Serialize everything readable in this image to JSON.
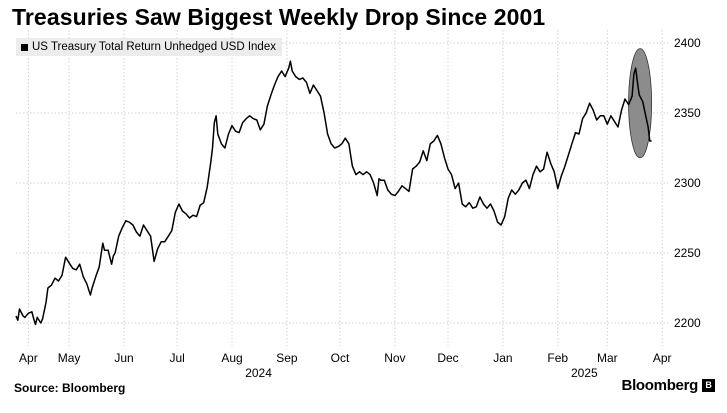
{
  "title": "Treasuries Saw Biggest Weekly Drop Since 2001",
  "source": "Source: Bloomberg",
  "brand": "Bloomberg",
  "chart_data": {
    "type": "line",
    "title": "Treasuries Saw Biggest Weekly Drop Since 2001",
    "legend": "US Treasury Total Return Unhedged USD Index",
    "legend_position": "top-left",
    "y_axis_side": "right",
    "ylim": [
      2190,
      2410
    ],
    "y_ticks": [
      2200,
      2250,
      2300,
      2350,
      2400
    ],
    "xlim": [
      0,
      366
    ],
    "x_ticks": [
      {
        "label": "Apr",
        "day": 7
      },
      {
        "label": "May",
        "day": 30
      },
      {
        "label": "Jun",
        "day": 61
      },
      {
        "label": "Jul",
        "day": 91
      },
      {
        "label": "Aug",
        "day": 122
      },
      {
        "label": "Sep",
        "day": 153
      },
      {
        "label": "Oct",
        "day": 183
      },
      {
        "label": "Nov",
        "day": 214
      },
      {
        "label": "Dec",
        "day": 244
      },
      {
        "label": "Jan",
        "day": 275
      },
      {
        "label": "Feb",
        "day": 306
      },
      {
        "label": "Mar",
        "day": 334
      },
      {
        "label": "Apr",
        "day": 365
      }
    ],
    "year_labels": [
      {
        "label": "2024",
        "day": 137
      },
      {
        "label": "2025",
        "day": 321
      }
    ],
    "grid": true,
    "series": [
      {
        "name": "US Treasury Total Return Unhedged USD Index",
        "color": "#000000",
        "points": [
          [
            0,
            2205
          ],
          [
            1,
            2202
          ],
          [
            2,
            2210
          ],
          [
            4,
            2205
          ],
          [
            5,
            2204
          ],
          [
            7,
            2207
          ],
          [
            9,
            2208
          ],
          [
            10,
            2203
          ],
          [
            11,
            2199
          ],
          [
            12,
            2204
          ],
          [
            14,
            2200
          ],
          [
            15,
            2203
          ],
          [
            17,
            2215
          ],
          [
            18,
            2225
          ],
          [
            20,
            2227
          ],
          [
            22,
            2232
          ],
          [
            24,
            2230
          ],
          [
            26,
            2234
          ],
          [
            28,
            2247
          ],
          [
            30,
            2243
          ],
          [
            32,
            2239
          ],
          [
            34,
            2238
          ],
          [
            36,
            2242
          ],
          [
            38,
            2233
          ],
          [
            40,
            2228
          ],
          [
            42,
            2220
          ],
          [
            43,
            2225
          ],
          [
            45,
            2233
          ],
          [
            47,
            2240
          ],
          [
            49,
            2257
          ],
          [
            50,
            2252
          ],
          [
            52,
            2252
          ],
          [
            54,
            2242
          ],
          [
            55,
            2248
          ],
          [
            56,
            2250
          ],
          [
            58,
            2262
          ],
          [
            60,
            2268
          ],
          [
            62,
            2273
          ],
          [
            64,
            2272
          ],
          [
            66,
            2270
          ],
          [
            68,
            2265
          ],
          [
            70,
            2262
          ],
          [
            72,
            2270
          ],
          [
            74,
            2266
          ],
          [
            76,
            2262
          ],
          [
            78,
            2244
          ],
          [
            80,
            2253
          ],
          [
            82,
            2258
          ],
          [
            84,
            2258
          ],
          [
            86,
            2262
          ],
          [
            88,
            2266
          ],
          [
            90,
            2279
          ],
          [
            92,
            2285
          ],
          [
            94,
            2280
          ],
          [
            96,
            2278
          ],
          [
            98,
            2275
          ],
          [
            100,
            2277
          ],
          [
            102,
            2276
          ],
          [
            104,
            2284
          ],
          [
            106,
            2286
          ],
          [
            108,
            2297
          ],
          [
            110,
            2315
          ],
          [
            111,
            2325
          ],
          [
            112,
            2343
          ],
          [
            113,
            2348
          ],
          [
            114,
            2335
          ],
          [
            116,
            2328
          ],
          [
            118,
            2325
          ],
          [
            120,
            2335
          ],
          [
            122,
            2341
          ],
          [
            124,
            2337
          ],
          [
            126,
            2336
          ],
          [
            128,
            2343
          ],
          [
            130,
            2346
          ],
          [
            132,
            2348
          ],
          [
            134,
            2346
          ],
          [
            136,
            2345
          ],
          [
            138,
            2338
          ],
          [
            140,
            2342
          ],
          [
            142,
            2355
          ],
          [
            144,
            2363
          ],
          [
            146,
            2370
          ],
          [
            148,
            2376
          ],
          [
            150,
            2380
          ],
          [
            152,
            2376
          ],
          [
            154,
            2382
          ],
          [
            155,
            2387
          ],
          [
            156,
            2380
          ],
          [
            158,
            2376
          ],
          [
            160,
            2374
          ],
          [
            162,
            2375
          ],
          [
            164,
            2372
          ],
          [
            166,
            2364
          ],
          [
            168,
            2370
          ],
          [
            170,
            2366
          ],
          [
            172,
            2362
          ],
          [
            174,
            2350
          ],
          [
            176,
            2335
          ],
          [
            178,
            2328
          ],
          [
            180,
            2325
          ],
          [
            182,
            2326
          ],
          [
            184,
            2328
          ],
          [
            186,
            2332
          ],
          [
            188,
            2328
          ],
          [
            189,
            2320
          ],
          [
            190,
            2312
          ],
          [
            192,
            2306
          ],
          [
            194,
            2308
          ],
          [
            196,
            2306
          ],
          [
            198,
            2308
          ],
          [
            200,
            2306
          ],
          [
            202,
            2300
          ],
          [
            204,
            2291
          ],
          [
            205,
            2303
          ],
          [
            206,
            2302
          ],
          [
            208,
            2302
          ],
          [
            210,
            2295
          ],
          [
            212,
            2292
          ],
          [
            214,
            2291
          ],
          [
            216,
            2294
          ],
          [
            218,
            2298
          ],
          [
            220,
            2296
          ],
          [
            222,
            2294
          ],
          [
            224,
            2310
          ],
          [
            226,
            2312
          ],
          [
            228,
            2315
          ],
          [
            230,
            2323
          ],
          [
            232,
            2316
          ],
          [
            234,
            2328
          ],
          [
            236,
            2330
          ],
          [
            238,
            2334
          ],
          [
            240,
            2328
          ],
          [
            242,
            2318
          ],
          [
            244,
            2310
          ],
          [
            246,
            2306
          ],
          [
            248,
            2296
          ],
          [
            250,
            2300
          ],
          [
            252,
            2285
          ],
          [
            254,
            2283
          ],
          [
            256,
            2286
          ],
          [
            258,
            2282
          ],
          [
            260,
            2283
          ],
          [
            262,
            2290
          ],
          [
            264,
            2285
          ],
          [
            266,
            2282
          ],
          [
            268,
            2285
          ],
          [
            270,
            2280
          ],
          [
            272,
            2272
          ],
          [
            274,
            2270
          ],
          [
            276,
            2276
          ],
          [
            278,
            2289
          ],
          [
            280,
            2295
          ],
          [
            282,
            2292
          ],
          [
            284,
            2295
          ],
          [
            286,
            2300
          ],
          [
            288,
            2302
          ],
          [
            290,
            2296
          ],
          [
            292,
            2306
          ],
          [
            294,
            2312
          ],
          [
            296,
            2308
          ],
          [
            298,
            2310
          ],
          [
            300,
            2322
          ],
          [
            302,
            2314
          ],
          [
            304,
            2308
          ],
          [
            306,
            2296
          ],
          [
            308,
            2305
          ],
          [
            310,
            2312
          ],
          [
            312,
            2320
          ],
          [
            314,
            2328
          ],
          [
            316,
            2336
          ],
          [
            318,
            2335
          ],
          [
            320,
            2346
          ],
          [
            322,
            2350
          ],
          [
            324,
            2357
          ],
          [
            326,
            2352
          ],
          [
            328,
            2345
          ],
          [
            330,
            2348
          ],
          [
            332,
            2348
          ],
          [
            334,
            2342
          ],
          [
            336,
            2348
          ],
          [
            338,
            2344
          ],
          [
            340,
            2340
          ],
          [
            342,
            2352
          ],
          [
            344,
            2360
          ],
          [
            346,
            2356
          ],
          [
            348,
            2362
          ],
          [
            349,
            2378
          ],
          [
            350,
            2382
          ],
          [
            351,
            2372
          ],
          [
            352,
            2363
          ],
          [
            354,
            2358
          ],
          [
            355,
            2352
          ],
          [
            357,
            2340
          ],
          [
            358,
            2330
          ],
          [
            359,
            2330
          ]
        ]
      }
    ],
    "annotation": {
      "type": "ellipse-highlight",
      "x_range": [
        346,
        359
      ],
      "y_range": [
        2318,
        2396
      ],
      "color": "#8c8c8c"
    }
  }
}
